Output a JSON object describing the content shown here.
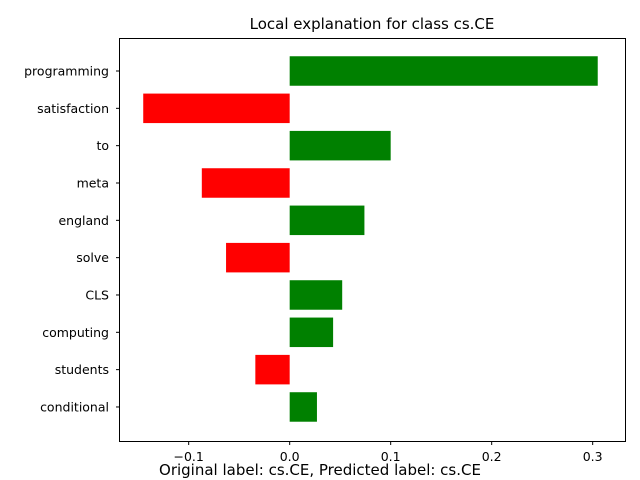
{
  "chart_data": {
    "type": "bar",
    "orientation": "horizontal",
    "title": "Local explanation for class cs.CE",
    "categories": [
      "programming",
      "satisfaction",
      "to",
      "meta",
      "england",
      "solve",
      "CLS",
      "computing",
      "students",
      "conditional"
    ],
    "values": [
      0.305,
      -0.145,
      0.1,
      -0.087,
      0.074,
      -0.063,
      0.052,
      0.043,
      -0.034,
      0.027
    ],
    "xlim": [
      -0.168,
      0.332
    ],
    "xticks": [
      -0.1,
      0.0,
      0.1,
      0.2,
      0.3
    ],
    "xtick_labels": [
      "−0.1",
      "0.0",
      "0.1",
      "0.2",
      "0.3"
    ],
    "xlabel": "",
    "ylabel": "",
    "grid": false,
    "colors": {
      "positive": "#008000",
      "negative": "#ff0000"
    }
  },
  "footer": "Original label: cs.CE, Predicted label: cs.CE"
}
